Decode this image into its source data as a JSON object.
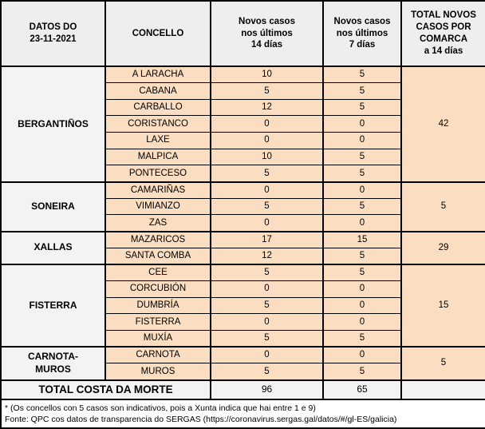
{
  "chart_data": {
    "type": "table",
    "title": "DATOS DO 23-11-2021",
    "columns": [
      "DATOS DO 23-11-2021",
      "CONCELLO",
      "Novos casos nos últimos 14 días",
      "Novos casos nos últimos 7 días",
      "TOTAL NOVOS CASOS POR COMARCA a 14 días"
    ],
    "groups": [
      {
        "comarca": "BERGANTIÑOS",
        "total_14d": 42,
        "municipalities": [
          {
            "name": "A LARACHA",
            "cases_14d": 10,
            "cases_7d": 5
          },
          {
            "name": "CABANA",
            "cases_14d": 5,
            "cases_7d": 5
          },
          {
            "name": "CARBALLO",
            "cases_14d": 12,
            "cases_7d": 5
          },
          {
            "name": "CORISTANCO",
            "cases_14d": 0,
            "cases_7d": 0
          },
          {
            "name": "LAXE",
            "cases_14d": 0,
            "cases_7d": 0
          },
          {
            "name": "MALPICA",
            "cases_14d": 10,
            "cases_7d": 5
          },
          {
            "name": "PONTECESO",
            "cases_14d": 5,
            "cases_7d": 5
          }
        ]
      },
      {
        "comarca": "SONEIRA",
        "total_14d": 5,
        "municipalities": [
          {
            "name": "CAMARIÑAS",
            "cases_14d": 0,
            "cases_7d": 0
          },
          {
            "name": "VIMIANZO",
            "cases_14d": 5,
            "cases_7d": 5
          },
          {
            "name": "ZAS",
            "cases_14d": 0,
            "cases_7d": 0
          }
        ]
      },
      {
        "comarca": "XALLAS",
        "total_14d": 29,
        "municipalities": [
          {
            "name": "MAZARICOS",
            "cases_14d": 17,
            "cases_7d": 15
          },
          {
            "name": "SANTA COMBA",
            "cases_14d": 12,
            "cases_7d": 5
          }
        ]
      },
      {
        "comarca": "FISTERRA",
        "total_14d": 15,
        "municipalities": [
          {
            "name": "CEE",
            "cases_14d": 5,
            "cases_7d": 5
          },
          {
            "name": "CORCUBIÓN",
            "cases_14d": 0,
            "cases_7d": 0
          },
          {
            "name": "DUMBRÍA",
            "cases_14d": 5,
            "cases_7d": 0
          },
          {
            "name": "FISTERRA",
            "cases_14d": 0,
            "cases_7d": 0
          },
          {
            "name": "MUXÍA",
            "cases_14d": 5,
            "cases_7d": 5
          }
        ]
      },
      {
        "comarca": "CARNOTA-MUROS",
        "comarca_display": "CARNOTA-\nMUROS",
        "total_14d": 5,
        "municipalities": [
          {
            "name": "CARNOTA",
            "cases_14d": 0,
            "cases_7d": 0
          },
          {
            "name": "MUROS",
            "cases_14d": 5,
            "cases_7d": 5
          }
        ]
      }
    ],
    "total_row": {
      "label": "TOTAL COSTA DA MORTE",
      "cases_14d": 96,
      "cases_7d": 65,
      "comarca_total": ""
    },
    "footnotes": [
      "* (Os concellos con 5 casos son indicativos, pois a Xunta indica que hai entre 1 e 9)",
      "Fonte: QPC cos datos de transparencia do SERGAS (https://coronavirus.sergas.gal/datos/#/gl-ES/galicia)"
    ]
  },
  "table": {
    "header": {
      "date_label": "DATOS DO\n23-11-2021",
      "concello": "CONCELLO",
      "col_14d": "Novos casos\nnos últimos\n14 días",
      "col_7d": "Novos casos\nnos últimos\n7 días",
      "col_total": "TOTAL NOVOS\nCASOS POR\nCOMARCA\na 14 días"
    },
    "colors": {
      "cell_bg": "#FBDEC1",
      "header_bg": "#EEEEEE",
      "group_bg": "#F3F3F3",
      "border": "#000000"
    }
  }
}
